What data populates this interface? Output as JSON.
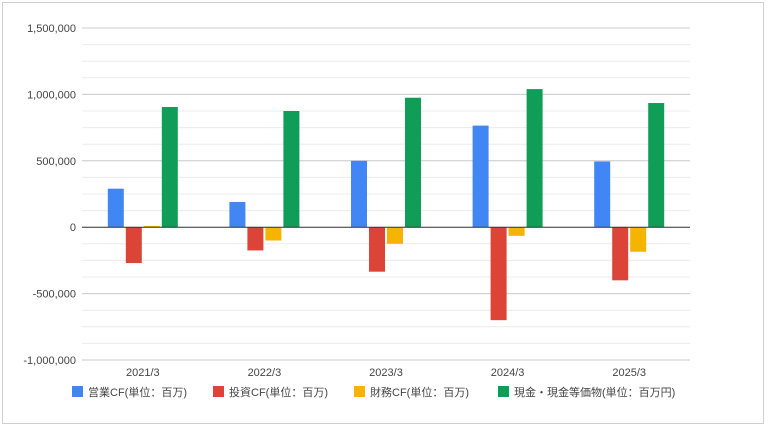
{
  "chart_data": {
    "type": "bar",
    "title": "",
    "xlabel": "",
    "ylabel": "",
    "categories": [
      "2021/3",
      "2022/3",
      "2023/3",
      "2024/3",
      "2025/3"
    ],
    "ylim": [
      -1000000,
      1500000
    ],
    "yticks": [
      -1000000,
      -500000,
      0,
      500000,
      1000000,
      1500000
    ],
    "ytick_labels": [
      "-1,000,000",
      "-500,000",
      "0",
      "500,000",
      "1,000,000",
      "1,500,000"
    ],
    "grid": true,
    "legend_position": "bottom",
    "series": [
      {
        "name": "営業CF(単位：百万)",
        "color": "#4285f4",
        "values": [
          290000,
          190000,
          500000,
          765000,
          495000
        ]
      },
      {
        "name": "投資CF(単位：百万)",
        "color": "#db4437",
        "values": [
          -270000,
          -175000,
          -335000,
          -700000,
          -400000
        ]
      },
      {
        "name": "財務CF(単位：百万)",
        "color": "#f4b400",
        "values": [
          10000,
          -100000,
          -125000,
          -65000,
          -185000
        ]
      },
      {
        "name": "現金・現金等価物(単位：百万円)",
        "color": "#0f9d58",
        "values": [
          905000,
          875000,
          975000,
          1040000,
          935000
        ]
      }
    ]
  }
}
